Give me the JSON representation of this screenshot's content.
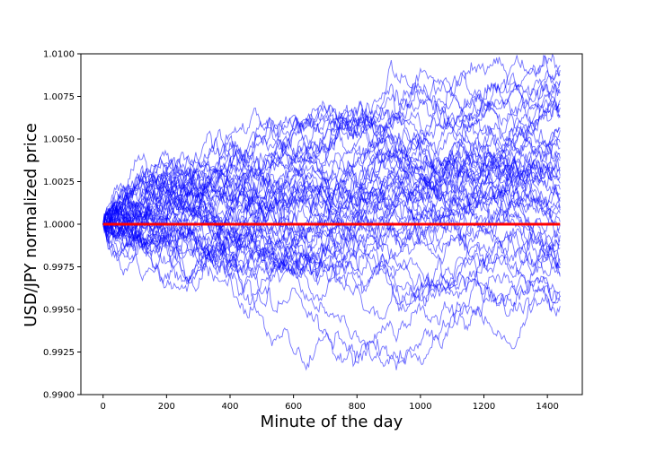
{
  "chart_data": {
    "type": "line",
    "title": "",
    "xlabel": "Minute of the day",
    "ylabel": "USD/JPY normalized price",
    "xlim": [
      -70,
      1510
    ],
    "ylim": [
      0.99,
      1.01
    ],
    "xticks": [
      0,
      200,
      400,
      600,
      800,
      1000,
      1200,
      1400
    ],
    "xtick_labels": [
      "0",
      "200",
      "400",
      "600",
      "800",
      "1000",
      "1200",
      "1400"
    ],
    "yticks": [
      0.99,
      0.9925,
      0.995,
      0.9975,
      1.0,
      1.0025,
      1.005,
      1.0075,
      1.01
    ],
    "ytick_labels": [
      "0.9900",
      "0.9925",
      "0.9950",
      "0.9975",
      "1.0000",
      "1.0025",
      "1.0050",
      "1.0075",
      "1.0100"
    ],
    "grid": false,
    "legend": "none",
    "colors": {
      "paths": "#0000ff",
      "mean": "#ff0000"
    },
    "mean_line": {
      "x": [
        0,
        1440
      ],
      "y": [
        1.0,
        1.0
      ]
    },
    "simulated_paths": {
      "count": 50,
      "x_range": [
        0,
        1440
      ],
      "start_value": 1.0,
      "final_range": [
        0.9952,
        1.0093
      ]
    }
  }
}
